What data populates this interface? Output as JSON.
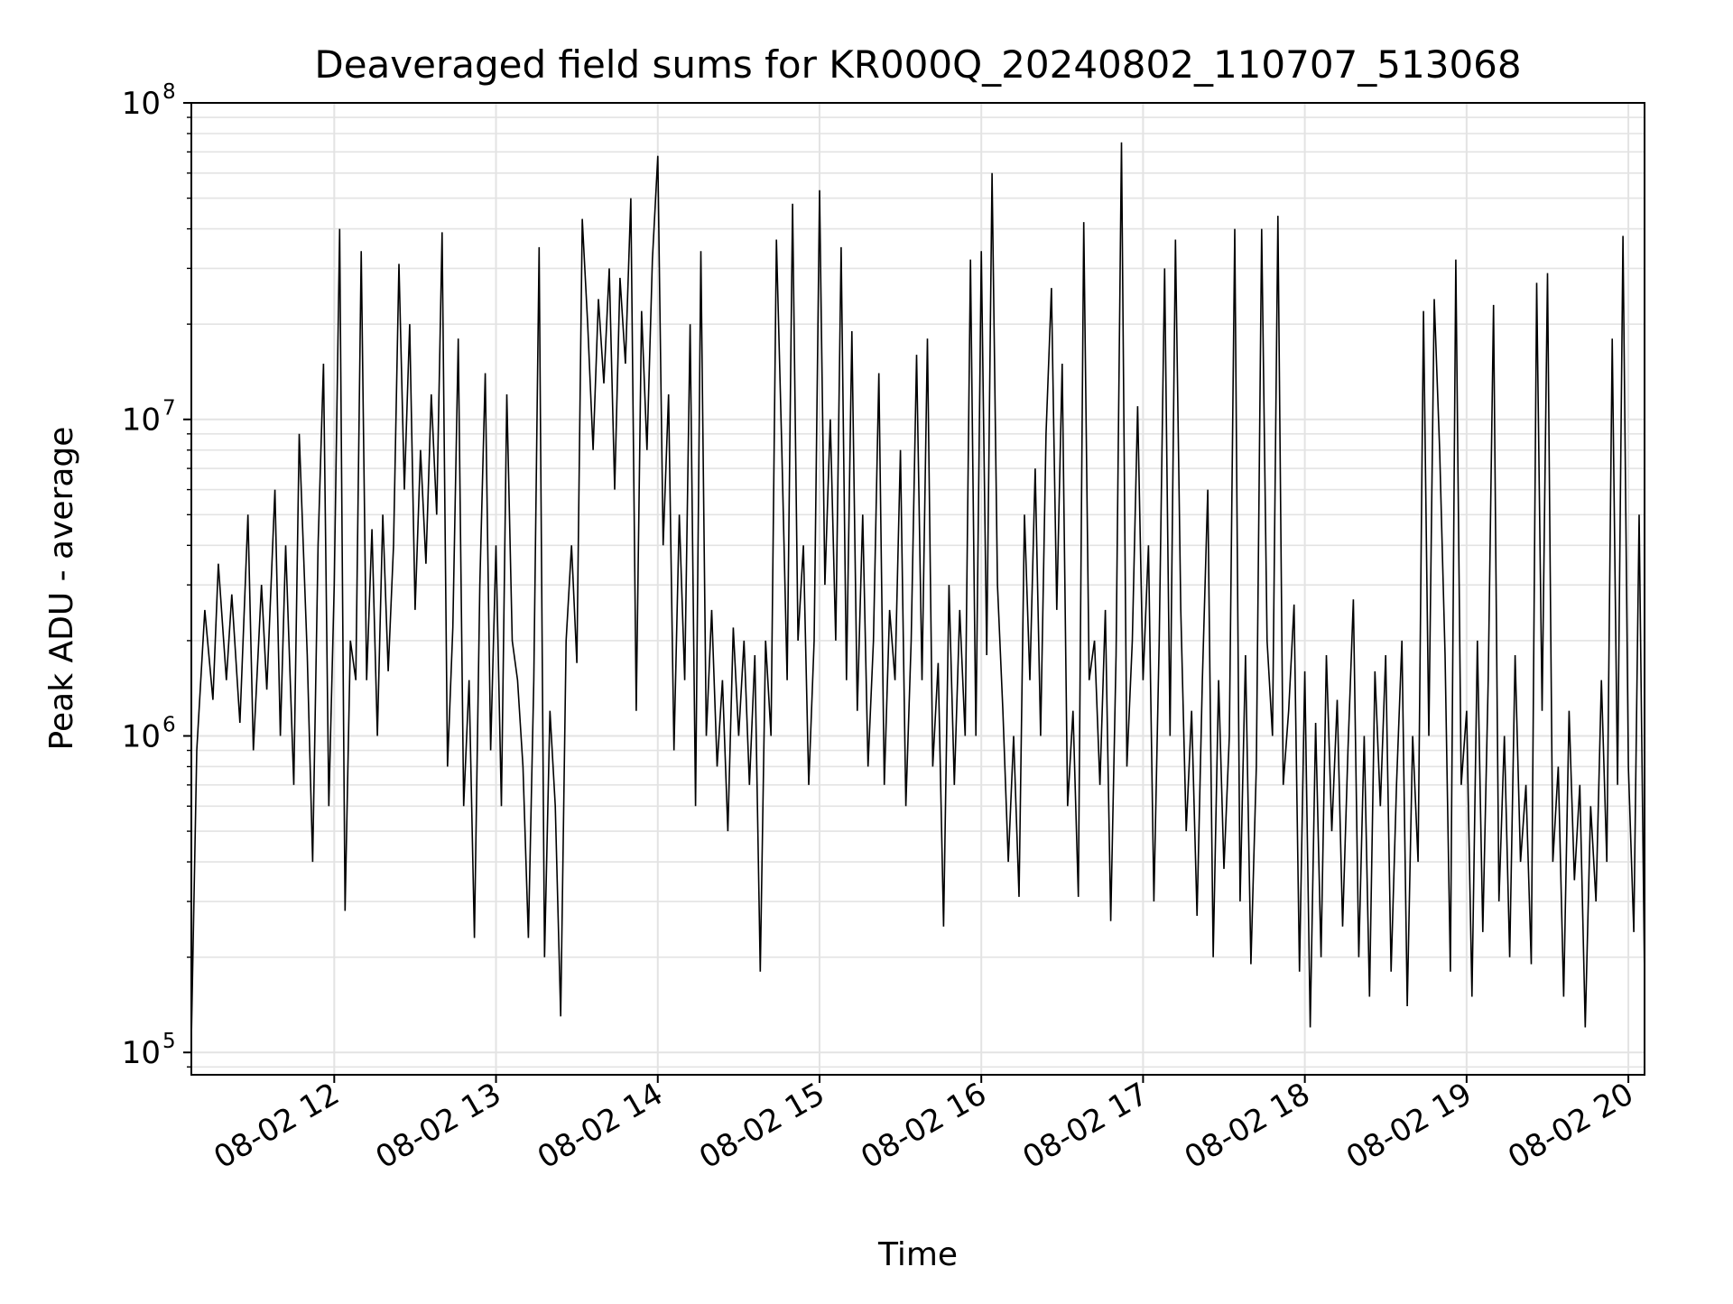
{
  "chart_data": {
    "type": "line",
    "title": "Deaveraged field sums for KR000Q_20240802_110707_513068",
    "xlabel": "Time",
    "ylabel": "Peak ADU - average",
    "yscale": "log",
    "ylim": [
      85000,
      100000000
    ],
    "xlim": [
      "2024-08-02 11:07",
      "2024-08-02 20:06"
    ],
    "x_ticks": [
      "08-02 12",
      "08-02 13",
      "08-02 14",
      "08-02 15",
      "08-02 16",
      "08-02 17",
      "08-02 18",
      "08-02 19",
      "08-02 20"
    ],
    "y_ticks": [
      {
        "base": "10",
        "exp": "5"
      },
      {
        "base": "10",
        "exp": "6"
      },
      {
        "base": "10",
        "exp": "7"
      },
      {
        "base": "10",
        "exp": "8"
      }
    ],
    "grid": true,
    "line_color": "#000000",
    "series": [
      {
        "points": [
          [
            "11:07",
            110000
          ],
          [
            "11:09",
            900000
          ],
          [
            "11:12",
            2500000
          ],
          [
            "11:15",
            1300000
          ],
          [
            "11:17",
            3500000
          ],
          [
            "11:20",
            1500000
          ],
          [
            "11:22",
            2800000
          ],
          [
            "11:25",
            1100000
          ],
          [
            "11:28",
            5000000
          ],
          [
            "11:30",
            900000
          ],
          [
            "11:33",
            3000000
          ],
          [
            "11:35",
            1400000
          ],
          [
            "11:38",
            6000000
          ],
          [
            "11:40",
            1000000
          ],
          [
            "11:42",
            4000000
          ],
          [
            "11:45",
            700000
          ],
          [
            "11:47",
            9000000
          ],
          [
            "11:50",
            1800000
          ],
          [
            "11:52",
            400000
          ],
          [
            "11:54",
            4000000
          ],
          [
            "11:56",
            15000000
          ],
          [
            "11:58",
            600000
          ],
          [
            "12:00",
            3000000
          ],
          [
            "12:02",
            40000000
          ],
          [
            "12:04",
            280000
          ],
          [
            "12:06",
            2000000
          ],
          [
            "12:08",
            1500000
          ],
          [
            "12:10",
            34000000
          ],
          [
            "12:12",
            1500000
          ],
          [
            "12:14",
            4500000
          ],
          [
            "12:16",
            1000000
          ],
          [
            "12:18",
            5000000
          ],
          [
            "12:20",
            1600000
          ],
          [
            "12:22",
            4000000
          ],
          [
            "12:24",
            31000000
          ],
          [
            "12:26",
            6000000
          ],
          [
            "12:28",
            20000000
          ],
          [
            "12:30",
            2500000
          ],
          [
            "12:32",
            8000000
          ],
          [
            "12:34",
            3500000
          ],
          [
            "12:36",
            12000000
          ],
          [
            "12:38",
            5000000
          ],
          [
            "12:40",
            39000000
          ],
          [
            "12:42",
            800000
          ],
          [
            "12:44",
            2200000
          ],
          [
            "12:46",
            18000000
          ],
          [
            "12:48",
            600000
          ],
          [
            "12:50",
            1500000
          ],
          [
            "12:52",
            230000
          ],
          [
            "12:54",
            3000000
          ],
          [
            "12:56",
            14000000
          ],
          [
            "12:58",
            900000
          ],
          [
            "13:00",
            4000000
          ],
          [
            "13:02",
            600000
          ],
          [
            "13:04",
            12000000
          ],
          [
            "13:06",
            2000000
          ],
          [
            "13:08",
            1500000
          ],
          [
            "13:10",
            800000
          ],
          [
            "13:12",
            230000
          ],
          [
            "13:14",
            1500000
          ],
          [
            "13:16",
            35000000
          ],
          [
            "13:18",
            200000
          ],
          [
            "13:20",
            1200000
          ],
          [
            "13:22",
            600000
          ],
          [
            "13:24",
            130000
          ],
          [
            "13:26",
            2000000
          ],
          [
            "13:28",
            4000000
          ],
          [
            "13:30",
            1700000
          ],
          [
            "13:32",
            43000000
          ],
          [
            "13:34",
            20000000
          ],
          [
            "13:36",
            8000000
          ],
          [
            "13:38",
            24000000
          ],
          [
            "13:40",
            13000000
          ],
          [
            "13:42",
            30000000
          ],
          [
            "13:44",
            6000000
          ],
          [
            "13:46",
            28000000
          ],
          [
            "13:48",
            15000000
          ],
          [
            "13:50",
            50000000
          ],
          [
            "13:52",
            1200000
          ],
          [
            "13:54",
            22000000
          ],
          [
            "13:56",
            8000000
          ],
          [
            "13:58",
            32000000
          ],
          [
            "14:00",
            68000000
          ],
          [
            "14:02",
            4000000
          ],
          [
            "14:04",
            12000000
          ],
          [
            "14:06",
            900000
          ],
          [
            "14:08",
            5000000
          ],
          [
            "14:10",
            1500000
          ],
          [
            "14:12",
            20000000
          ],
          [
            "14:14",
            600000
          ],
          [
            "14:16",
            34000000
          ],
          [
            "14:18",
            1000000
          ],
          [
            "14:20",
            2500000
          ],
          [
            "14:22",
            800000
          ],
          [
            "14:24",
            1500000
          ],
          [
            "14:26",
            500000
          ],
          [
            "14:28",
            2200000
          ],
          [
            "14:30",
            1000000
          ],
          [
            "14:32",
            2000000
          ],
          [
            "14:34",
            700000
          ],
          [
            "14:36",
            1800000
          ],
          [
            "14:38",
            180000
          ],
          [
            "14:40",
            2000000
          ],
          [
            "14:42",
            1000000
          ],
          [
            "14:44",
            37000000
          ],
          [
            "14:46",
            8000000
          ],
          [
            "14:48",
            1500000
          ],
          [
            "14:50",
            48000000
          ],
          [
            "14:52",
            2000000
          ],
          [
            "14:54",
            4000000
          ],
          [
            "14:56",
            700000
          ],
          [
            "14:58",
            2000000
          ],
          [
            "15:00",
            53000000
          ],
          [
            "15:02",
            3000000
          ],
          [
            "15:04",
            10000000
          ],
          [
            "15:06",
            2000000
          ],
          [
            "15:08",
            35000000
          ],
          [
            "15:10",
            1500000
          ],
          [
            "15:12",
            19000000
          ],
          [
            "15:14",
            1200000
          ],
          [
            "15:16",
            5000000
          ],
          [
            "15:18",
            800000
          ],
          [
            "15:20",
            2000000
          ],
          [
            "15:22",
            14000000
          ],
          [
            "15:24",
            700000
          ],
          [
            "15:26",
            2500000
          ],
          [
            "15:28",
            1500000
          ],
          [
            "15:30",
            8000000
          ],
          [
            "15:32",
            600000
          ],
          [
            "15:34",
            2000000
          ],
          [
            "15:36",
            16000000
          ],
          [
            "15:38",
            1500000
          ],
          [
            "15:40",
            18000000
          ],
          [
            "15:42",
            800000
          ],
          [
            "15:44",
            1700000
          ],
          [
            "15:46",
            250000
          ],
          [
            "15:48",
            3000000
          ],
          [
            "15:50",
            700000
          ],
          [
            "15:52",
            2500000
          ],
          [
            "15:54",
            1000000
          ],
          [
            "15:56",
            32000000
          ],
          [
            "15:58",
            1000000
          ],
          [
            "16:00",
            34000000
          ],
          [
            "16:02",
            1800000
          ],
          [
            "16:04",
            60000000
          ],
          [
            "16:06",
            3000000
          ],
          [
            "16:08",
            1200000
          ],
          [
            "16:10",
            400000
          ],
          [
            "16:12",
            1000000
          ],
          [
            "16:14",
            310000
          ],
          [
            "16:16",
            5000000
          ],
          [
            "16:18",
            1500000
          ],
          [
            "16:20",
            7000000
          ],
          [
            "16:22",
            1000000
          ],
          [
            "16:24",
            9000000
          ],
          [
            "16:26",
            26000000
          ],
          [
            "16:28",
            2500000
          ],
          [
            "16:30",
            15000000
          ],
          [
            "16:32",
            600000
          ],
          [
            "16:34",
            1200000
          ],
          [
            "16:36",
            310000
          ],
          [
            "16:38",
            42000000
          ],
          [
            "16:40",
            1500000
          ],
          [
            "16:42",
            2000000
          ],
          [
            "16:44",
            700000
          ],
          [
            "16:46",
            2500000
          ],
          [
            "16:48",
            260000
          ],
          [
            "16:50",
            1800000
          ],
          [
            "16:52",
            75000000
          ],
          [
            "16:54",
            800000
          ],
          [
            "16:56",
            2000000
          ],
          [
            "16:58",
            11000000
          ],
          [
            "17:00",
            1500000
          ],
          [
            "17:02",
            4000000
          ],
          [
            "17:04",
            300000
          ],
          [
            "17:06",
            2000000
          ],
          [
            "17:08",
            30000000
          ],
          [
            "17:10",
            1000000
          ],
          [
            "17:12",
            37000000
          ],
          [
            "17:14",
            2500000
          ],
          [
            "17:16",
            500000
          ],
          [
            "17:18",
            1200000
          ],
          [
            "17:20",
            270000
          ],
          [
            "17:22",
            1500000
          ],
          [
            "17:24",
            6000000
          ],
          [
            "17:26",
            200000
          ],
          [
            "17:28",
            1500000
          ],
          [
            "17:30",
            380000
          ],
          [
            "17:32",
            1000000
          ],
          [
            "17:34",
            40000000
          ],
          [
            "17:36",
            300000
          ],
          [
            "17:38",
            1800000
          ],
          [
            "17:40",
            190000
          ],
          [
            "17:42",
            800000
          ],
          [
            "17:44",
            40000000
          ],
          [
            "17:46",
            2000000
          ],
          [
            "17:48",
            1000000
          ],
          [
            "17:50",
            44000000
          ],
          [
            "17:52",
            700000
          ],
          [
            "17:54",
            1200000
          ],
          [
            "17:56",
            2600000
          ],
          [
            "17:58",
            180000
          ],
          [
            "18:00",
            1600000
          ],
          [
            "18:02",
            120000
          ],
          [
            "18:04",
            1100000
          ],
          [
            "18:06",
            200000
          ],
          [
            "18:08",
            1800000
          ],
          [
            "18:10",
            500000
          ],
          [
            "18:12",
            1300000
          ],
          [
            "18:14",
            250000
          ],
          [
            "18:16",
            900000
          ],
          [
            "18:18",
            2700000
          ],
          [
            "18:20",
            200000
          ],
          [
            "18:22",
            1000000
          ],
          [
            "18:24",
            150000
          ],
          [
            "18:26",
            1600000
          ],
          [
            "18:28",
            600000
          ],
          [
            "18:30",
            1800000
          ],
          [
            "18:32",
            180000
          ],
          [
            "18:34",
            700000
          ],
          [
            "18:36",
            2000000
          ],
          [
            "18:38",
            140000
          ],
          [
            "18:40",
            1000000
          ],
          [
            "18:42",
            400000
          ],
          [
            "18:44",
            22000000
          ],
          [
            "18:46",
            1000000
          ],
          [
            "18:48",
            24000000
          ],
          [
            "18:50",
            8000000
          ],
          [
            "18:52",
            1800000
          ],
          [
            "18:54",
            180000
          ],
          [
            "18:56",
            32000000
          ],
          [
            "18:58",
            700000
          ],
          [
            "19:00",
            1200000
          ],
          [
            "19:02",
            150000
          ],
          [
            "19:04",
            2000000
          ],
          [
            "19:06",
            240000
          ],
          [
            "19:08",
            1500000
          ],
          [
            "19:10",
            23000000
          ],
          [
            "19:12",
            300000
          ],
          [
            "19:14",
            1000000
          ],
          [
            "19:16",
            200000
          ],
          [
            "19:18",
            1800000
          ],
          [
            "19:20",
            400000
          ],
          [
            "19:22",
            700000
          ],
          [
            "19:24",
            190000
          ],
          [
            "19:26",
            27000000
          ],
          [
            "19:28",
            1200000
          ],
          [
            "19:30",
            29000000
          ],
          [
            "19:32",
            400000
          ],
          [
            "19:34",
            800000
          ],
          [
            "19:36",
            150000
          ],
          [
            "19:38",
            1200000
          ],
          [
            "19:40",
            350000
          ],
          [
            "19:42",
            700000
          ],
          [
            "19:44",
            120000
          ],
          [
            "19:46",
            600000
          ],
          [
            "19:48",
            300000
          ],
          [
            "19:50",
            1500000
          ],
          [
            "19:52",
            400000
          ],
          [
            "19:54",
            18000000
          ],
          [
            "19:56",
            700000
          ],
          [
            "19:58",
            38000000
          ],
          [
            "20:00",
            800000
          ],
          [
            "20:02",
            240000
          ],
          [
            "20:04",
            5000000
          ],
          [
            "20:06",
            170000
          ]
        ]
      }
    ]
  }
}
